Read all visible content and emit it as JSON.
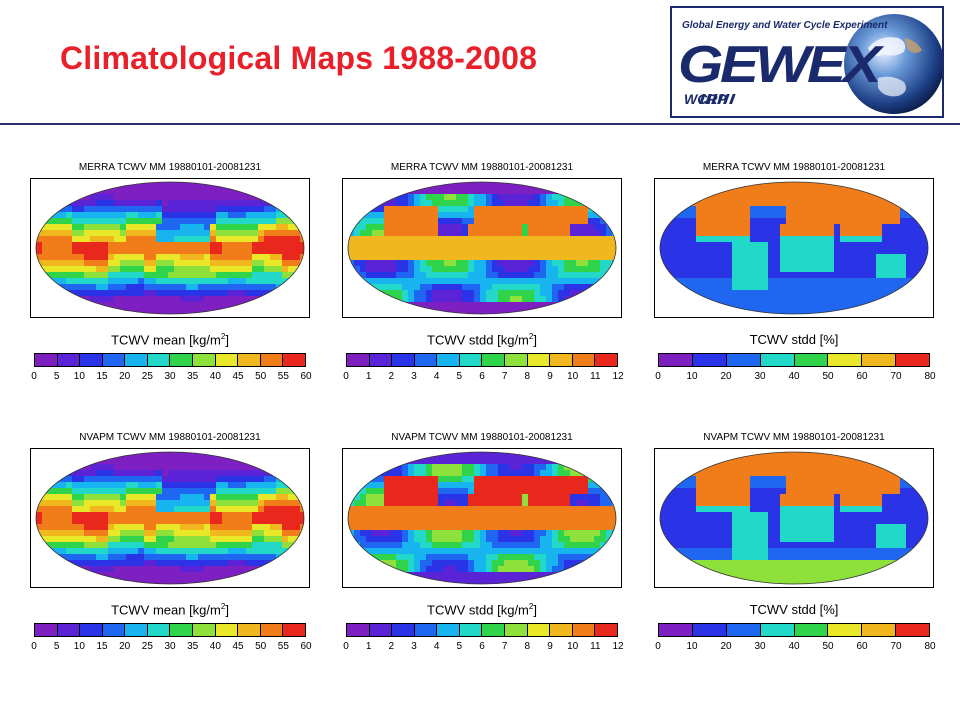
{
  "slide": {
    "title": "Climatological Maps 1988-2008"
  },
  "logo": {
    "tagline": "Global Energy and Water Cycle Experiment",
    "wordmark": "GEWEX",
    "sub": "WCRP",
    "colors": {
      "navy": "#1a2a6c",
      "globe": "#2a5aa8"
    }
  },
  "colormap": [
    "#7e1fc2",
    "#5a23d6",
    "#2a34e6",
    "#1f66f0",
    "#18b4f0",
    "#22d9c9",
    "#2fd44a",
    "#8ee03a",
    "#e8e829",
    "#f0b81e",
    "#f07d1a",
    "#e8281d"
  ],
  "panels": [
    {
      "id": "merra-mean",
      "title": "MERRA TCWV MM 19880101-20081231",
      "var": "TCWV mean",
      "unit": "[kg/m",
      "sup": "2",
      "unit_end": "]",
      "ticks": [
        "0",
        "5",
        "10",
        "15",
        "20",
        "25",
        "30",
        "35",
        "40",
        "45",
        "50",
        "55",
        "60"
      ],
      "field": "mean"
    },
    {
      "id": "merra-stdd",
      "title": "MERRA TCWV MM 19880101-20081231",
      "var": "TCWV stdd",
      "unit": "[kg/m",
      "sup": "2",
      "unit_end": "]",
      "ticks": [
        "0",
        "1",
        "2",
        "3",
        "4",
        "5",
        "6",
        "7",
        "8",
        "9",
        "10",
        "11",
        "12"
      ],
      "field": "stdd"
    },
    {
      "id": "merra-rel",
      "title": "MERRA TCWV MM 19880101-20081231",
      "var": "TCWV stdd",
      "unit": "[%]",
      "sup": "",
      "unit_end": "",
      "ticks": [
        "0",
        "10",
        "20",
        "30",
        "40",
        "50",
        "60",
        "70",
        "80"
      ],
      "field": "rel"
    },
    {
      "id": "nvapm-mean",
      "title": "NVAPM TCWV MM 19880101-20081231",
      "var": "TCWV mean",
      "unit": "[kg/m",
      "sup": "2",
      "unit_end": "]",
      "ticks": [
        "0",
        "5",
        "10",
        "15",
        "20",
        "25",
        "30",
        "35",
        "40",
        "45",
        "50",
        "55",
        "60"
      ],
      "field": "mean"
    },
    {
      "id": "nvapm-stdd",
      "title": "NVAPM TCWV MM 19880101-20081231",
      "var": "TCWV stdd",
      "unit": "[kg/m",
      "sup": "2",
      "unit_end": "]",
      "ticks": [
        "0",
        "1",
        "2",
        "3",
        "4",
        "5",
        "6",
        "7",
        "8",
        "9",
        "10",
        "11",
        "12"
      ],
      "field": "stdd"
    },
    {
      "id": "nvapm-rel",
      "title": "NVAPM TCWV MM 19880101-20081231",
      "var": "TCWV stdd",
      "unit": "[%]",
      "sup": "",
      "unit_end": "",
      "ticks": [
        "0",
        "10",
        "20",
        "30",
        "40",
        "50",
        "60",
        "70",
        "80"
      ],
      "field": "rel"
    }
  ]
}
